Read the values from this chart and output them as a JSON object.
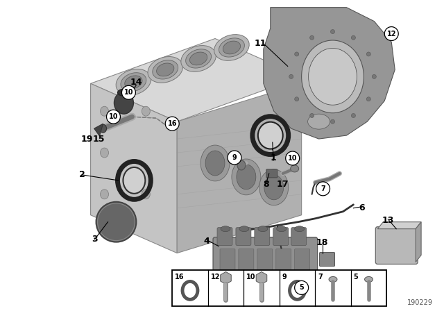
{
  "background_color": "#ffffff",
  "diagram_number": "190229",
  "figure_width": 6.4,
  "figure_height": 4.48,
  "dpi": 100,
  "engine_block": {
    "color_top": "#cccccc",
    "color_left": "#b8b8b8",
    "color_right": "#aaaaaa",
    "edge_color": "#888888"
  },
  "rear_plate": {
    "fill": "#888888",
    "edge": "#555555"
  }
}
